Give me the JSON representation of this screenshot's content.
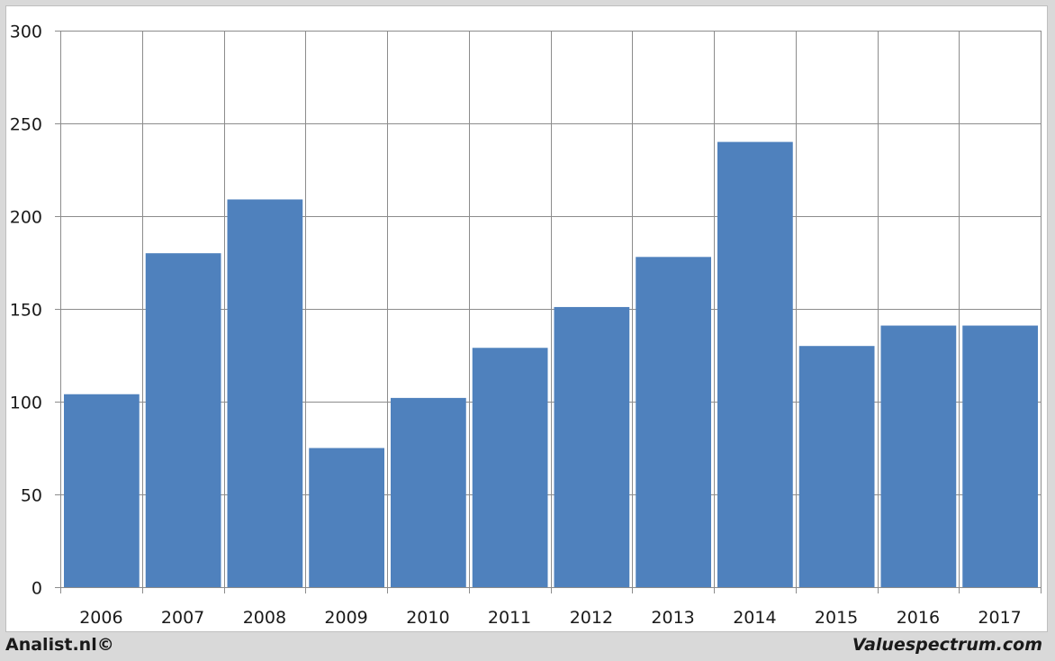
{
  "chart_data": {
    "type": "bar",
    "categories": [
      "2006",
      "2007",
      "2008",
      "2009",
      "2010",
      "2011",
      "2012",
      "2013",
      "2014",
      "2015",
      "2016",
      "2017"
    ],
    "values": [
      104,
      180,
      209,
      75,
      102,
      129,
      151,
      178,
      240,
      130,
      141,
      141
    ],
    "title": "",
    "xlabel": "",
    "ylabel": "",
    "ylim": [
      0,
      300
    ],
    "yticks": [
      0,
      50,
      100,
      150,
      200,
      250,
      300
    ],
    "grid": true,
    "bar_color": "#4f81bd",
    "grid_color": "#8c8c8c"
  },
  "footer": {
    "left": "Analist.nl©",
    "right": "Valuespectrum.com"
  }
}
